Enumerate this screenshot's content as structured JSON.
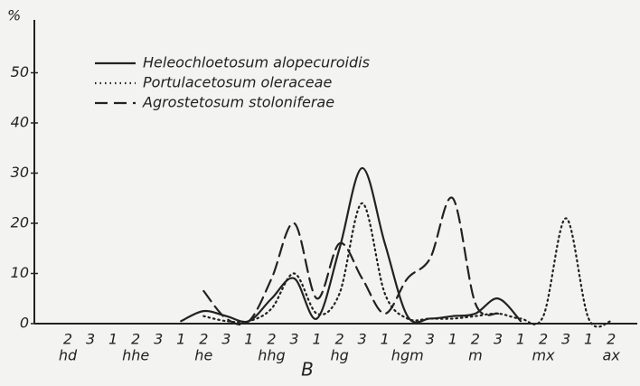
{
  "chart_data": {
    "type": "line",
    "ylabel": "%",
    "xlabel": "B",
    "categories": [
      "2",
      "3",
      "1",
      "2",
      "3",
      "1",
      "2",
      "3",
      "1",
      "2",
      "3",
      "1",
      "2",
      "3",
      "1",
      "2",
      "3",
      "1",
      "2",
      "3",
      "1",
      "2",
      "3",
      "1",
      "2"
    ],
    "groups": [
      "hd",
      "hhe",
      "he",
      "hhg",
      "hg",
      "hgm",
      "m",
      "mx",
      "ax"
    ],
    "ylim": [
      0,
      60
    ],
    "yticks": [
      0,
      10,
      20,
      30,
      40,
      50
    ],
    "series": [
      {
        "name": "Heleochloetosum alopecuroidis",
        "color": "#222",
        "dash": "solid",
        "values": [
          null,
          null,
          null,
          null,
          null,
          0.5,
          2.5,
          1.5,
          0.5,
          5,
          9,
          1,
          15,
          31,
          16,
          1.5,
          1,
          1.5,
          2,
          5,
          0.5,
          null,
          null,
          null,
          null
        ]
      },
      {
        "name": "Portulacetosum oleraceae",
        "color": "#222",
        "dash": "dotted",
        "values": [
          null,
          null,
          null,
          null,
          null,
          null,
          1.5,
          0.5,
          0.5,
          3,
          10,
          2,
          6,
          24,
          6,
          1,
          1,
          1,
          1.5,
          2,
          1,
          1.5,
          21,
          1,
          0.5
        ]
      },
      {
        "name": "Agrostetosum stoloniferae",
        "color": "#222",
        "dash": "dashed",
        "values": [
          null,
          null,
          null,
          null,
          null,
          null,
          6.5,
          1,
          0.5,
          9,
          20,
          5,
          16,
          9,
          2,
          9,
          13,
          25,
          4,
          2,
          null,
          null,
          null,
          null,
          null
        ]
      }
    ]
  }
}
